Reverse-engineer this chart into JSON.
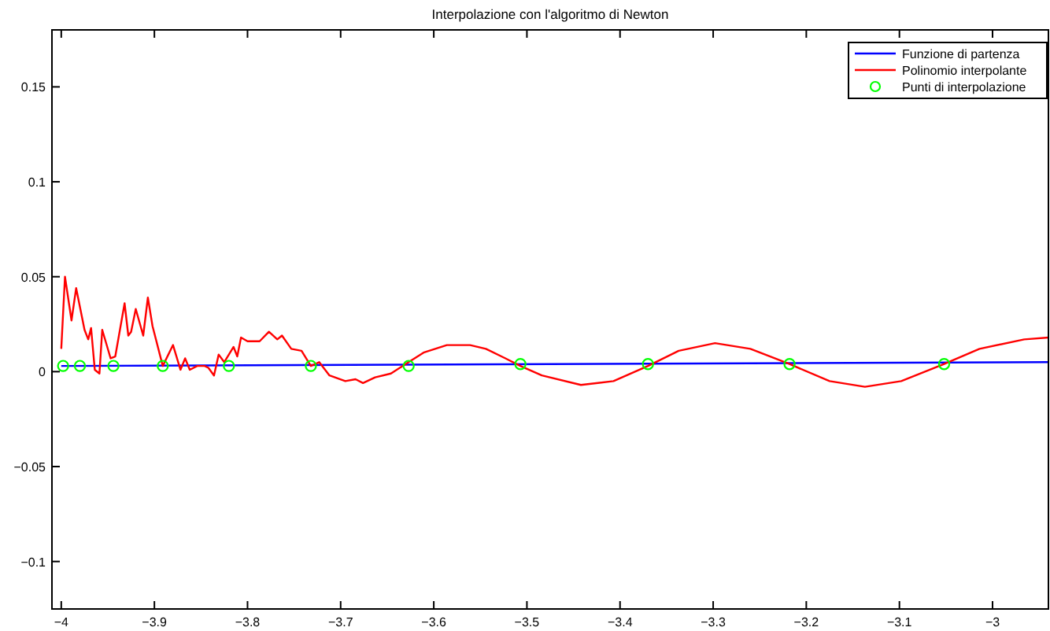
{
  "chart_data": {
    "type": "line",
    "title": "Interpolazione con l'algoritmo di Newton",
    "xlim": [
      -4.01,
      -2.94
    ],
    "ylim": [
      -0.125,
      0.18
    ],
    "xticks": [
      {
        "value": -4,
        "label": "−4"
      },
      {
        "value": -3.9,
        "label": "−3.9"
      },
      {
        "value": -3.8,
        "label": "−3.8"
      },
      {
        "value": -3.7,
        "label": "−3.7"
      },
      {
        "value": -3.6,
        "label": "−3.6"
      },
      {
        "value": -3.5,
        "label": "−3.5"
      },
      {
        "value": -3.4,
        "label": "−3.4"
      },
      {
        "value": -3.3,
        "label": "−3.3"
      },
      {
        "value": -3.2,
        "label": "−3.2"
      },
      {
        "value": -3.1,
        "label": "−3.1"
      },
      {
        "value": -3,
        "label": "−3"
      }
    ],
    "yticks": [
      {
        "value": -0.1,
        "label": "−0.1"
      },
      {
        "value": -0.05,
        "label": "−0.05"
      },
      0,
      0.05,
      0.1,
      0.15
    ],
    "grid": false,
    "legend": "top right",
    "series": [
      {
        "name": "Funzione di partenza",
        "color": "#0000ff",
        "x": [
          -4,
          -2.94
        ],
        "values": [
          0.003,
          0.005
        ]
      },
      {
        "name": "Polinomio interpolante",
        "color": "#ff0000",
        "x": [
          -4.0,
          -3.996,
          -3.989,
          -3.984,
          -3.975,
          -3.971,
          -3.968,
          -3.964,
          -3.959,
          -3.956,
          -3.947,
          -3.942,
          -3.932,
          -3.928,
          -3.925,
          -3.92,
          -3.912,
          -3.907,
          -3.902,
          -3.891,
          -3.88,
          -3.872,
          -3.867,
          -3.862,
          -3.854,
          -3.846,
          -3.842,
          -3.836,
          -3.831,
          -3.825,
          -3.815,
          -3.811,
          -3.807,
          -3.8,
          -3.787,
          -3.777,
          -3.768,
          -3.763,
          -3.753,
          -3.742,
          -3.732,
          -3.723,
          -3.712,
          -3.695,
          -3.684,
          -3.676,
          -3.663,
          -3.646,
          -3.627,
          -3.611,
          -3.586,
          -3.561,
          -3.544,
          -3.523,
          -3.507,
          -3.484,
          -3.442,
          -3.407,
          -3.37,
          -3.337,
          -3.298,
          -3.26,
          -3.218,
          -3.175,
          -3.137,
          -3.098,
          -3.052,
          -3.014,
          -2.966,
          -2.94
        ],
        "values": [
          0.012,
          0.05,
          0.027,
          0.044,
          0.022,
          0.017,
          0.023,
          0.001,
          -0.001,
          0.022,
          0.007,
          0.008,
          0.036,
          0.019,
          0.021,
          0.033,
          0.019,
          0.039,
          0.024,
          0.003,
          0.014,
          0.001,
          0.007,
          0.001,
          0.003,
          0.003,
          0.002,
          -0.002,
          0.009,
          0.005,
          0.013,
          0.008,
          0.018,
          0.016,
          0.016,
          0.021,
          0.017,
          0.019,
          0.012,
          0.011,
          0.003,
          0.005,
          -0.002,
          -0.005,
          -0.004,
          -0.006,
          -0.003,
          -0.001,
          0.005,
          0.01,
          0.014,
          0.014,
          0.012,
          0.007,
          0.003,
          -0.002,
          -0.007,
          -0.005,
          0.003,
          0.011,
          0.015,
          0.012,
          0.004,
          -0.005,
          -0.008,
          -0.005,
          0.004,
          0.012,
          0.017,
          0.018
        ]
      },
      {
        "name": "Punti di interpolazione",
        "type": "scatter",
        "color": "#00ff00",
        "marker": "circle",
        "x": [
          -3.998,
          -3.98,
          -3.944,
          -3.891,
          -3.82,
          -3.732,
          -3.627,
          -3.507,
          -3.37,
          -3.218,
          -3.052
        ],
        "values": [
          0.003,
          0.003,
          0.003,
          0.003,
          0.003,
          0.003,
          0.003,
          0.004,
          0.004,
          0.004,
          0.004
        ]
      }
    ]
  }
}
